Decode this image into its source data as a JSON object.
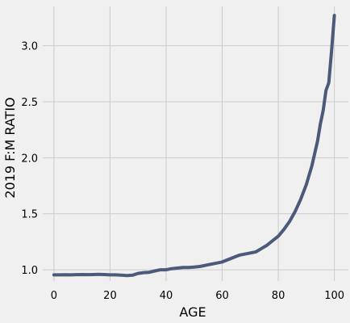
{
  "chart_data": {
    "type": "line",
    "title": "",
    "xlabel": "AGE",
    "ylabel": "2019 F:M RATIO",
    "xlim": [
      -4,
      105
    ],
    "ylim": [
      0.9,
      3.35
    ],
    "xticks": [
      0,
      20,
      40,
      60,
      80,
      100
    ],
    "yticks": [
      1.0,
      1.5,
      2.0,
      2.5,
      3.0
    ],
    "ytick_labels": [
      "1.0",
      "1.5",
      "2.0",
      "2.5",
      "3.0"
    ],
    "grid": true,
    "line_color": "#4a5a78",
    "background_color": "#f0f0f0",
    "series": [
      {
        "x": [
          0,
          2,
          4,
          6,
          8,
          10,
          12,
          14,
          16,
          18,
          20,
          22,
          24,
          26,
          28,
          30,
          32,
          34,
          36,
          38,
          40,
          42,
          44,
          46,
          48,
          50,
          52,
          54,
          56,
          58,
          60,
          62,
          64,
          66,
          68,
          70,
          72,
          74,
          76,
          78,
          80,
          82,
          84,
          86,
          88,
          90,
          92,
          94,
          95,
          96,
          97,
          98,
          99,
          100
        ],
        "y": [
          0.955,
          0.955,
          0.956,
          0.955,
          0.957,
          0.958,
          0.957,
          0.958,
          0.959,
          0.958,
          0.955,
          0.955,
          0.952,
          0.948,
          0.952,
          0.968,
          0.975,
          0.978,
          0.99,
          1.0,
          1.0,
          1.01,
          1.015,
          1.02,
          1.02,
          1.025,
          1.03,
          1.04,
          1.05,
          1.06,
          1.07,
          1.09,
          1.11,
          1.13,
          1.14,
          1.15,
          1.16,
          1.19,
          1.22,
          1.26,
          1.3,
          1.36,
          1.43,
          1.52,
          1.63,
          1.76,
          1.93,
          2.15,
          2.3,
          2.42,
          2.6,
          2.67,
          2.95,
          3.27
        ]
      }
    ]
  }
}
